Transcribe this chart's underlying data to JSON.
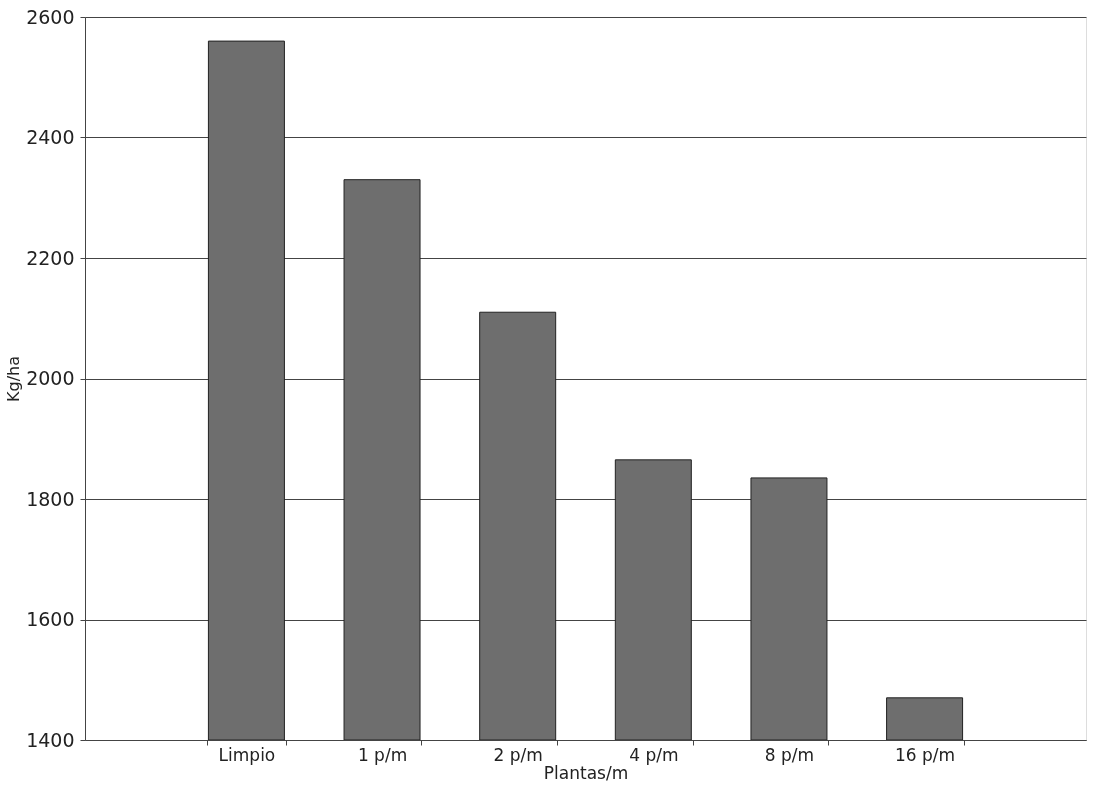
{
  "chart_data": {
    "type": "bar",
    "xlabel": "Plantas/m",
    "ylabel": "Kg/ha",
    "categories": [
      "Limpio",
      "1 p/m",
      "2 p/m",
      "4 p/m",
      "8 p/m",
      "16 p/m"
    ],
    "values": [
      2560,
      2330,
      2110,
      1865,
      1835,
      1470
    ],
    "color": "#6e6e6e",
    "ylim": [
      1400,
      2600
    ],
    "yticks": [
      1400,
      1600,
      1800,
      2000,
      2200,
      2400,
      2600
    ],
    "grid": "y"
  }
}
